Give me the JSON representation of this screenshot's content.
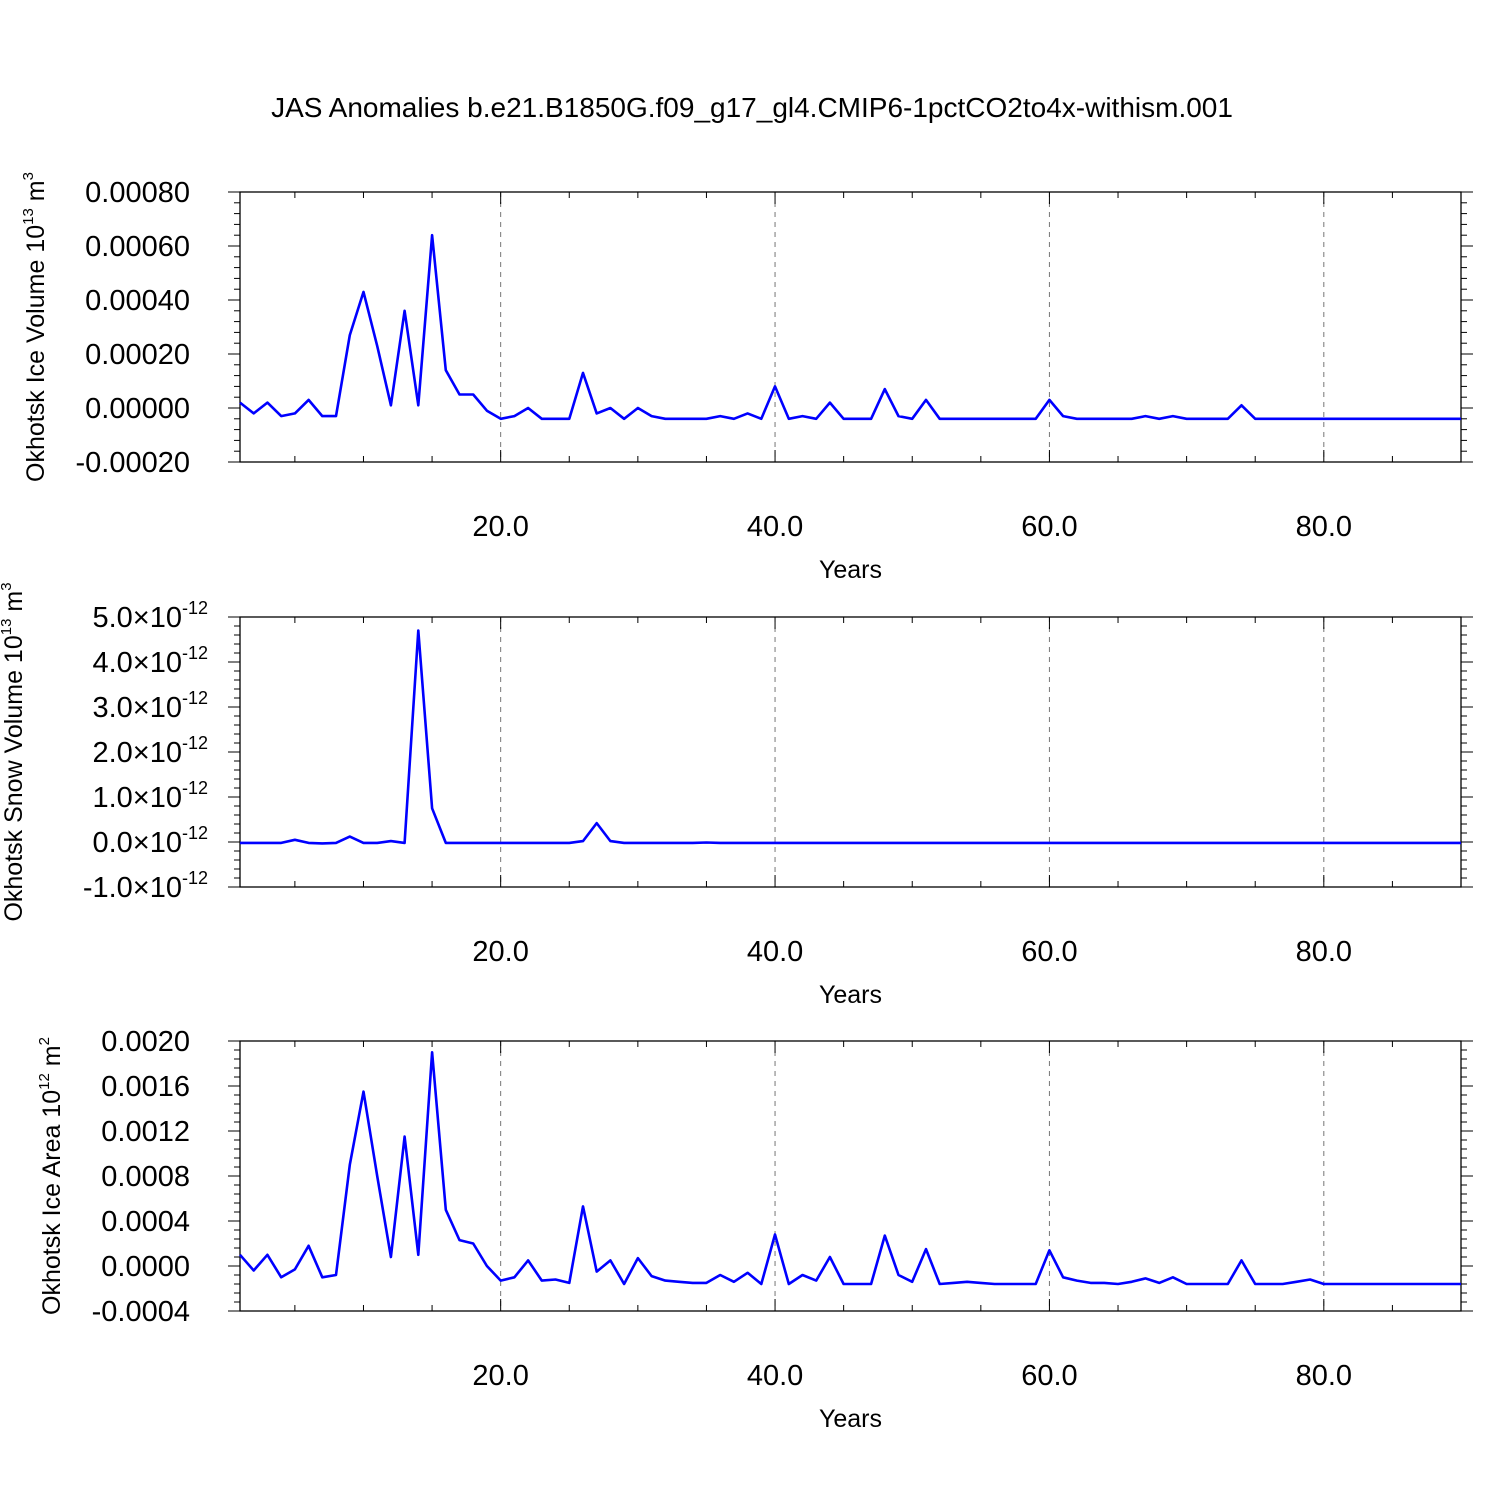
{
  "title": "JAS Anomalies b.e21.B1850G.f09_g17_gl4.CMIP6-1pctCO2to4x-withism.001",
  "line_color": "#0000ff",
  "chart_data": [
    {
      "type": "line",
      "title": "",
      "xlabel": "Years",
      "ylabel": "Okhotsk Ice Volume 10",
      "ylabel_exp": "13",
      "ylabel_unit": " m",
      "ylabel_unit_exp": "3",
      "xlim": [
        1,
        90
      ],
      "ylim": [
        -0.0002,
        0.0008
      ],
      "grid": "vertical dashed at major x ticks",
      "x_ticks": [
        20,
        40,
        60,
        80
      ],
      "x_tick_labels": [
        "20.0",
        "40.0",
        "60.0",
        "80.0"
      ],
      "y_ticks": [
        -0.0002,
        0,
        0.0002,
        0.0004,
        0.0006,
        0.0008
      ],
      "y_tick_labels": [
        "-0.00020",
        "0.00000",
        "0.00020",
        "0.00040",
        "0.00060",
        "0.00080"
      ],
      "x_start": 1,
      "values": [
        2e-05,
        -2e-05,
        2e-05,
        -3e-05,
        -2e-05,
        3e-05,
        -3e-05,
        -3e-05,
        0.00027,
        0.00043,
        0.00023,
        1e-05,
        0.00036,
        1e-05,
        0.00064,
        0.00014,
        5e-05,
        5e-05,
        -1e-05,
        -4e-05,
        -3e-05,
        0.0,
        -4e-05,
        -4e-05,
        -4e-05,
        0.00013,
        -2e-05,
        0.0,
        -4e-05,
        0.0,
        -3e-05,
        -4e-05,
        -4e-05,
        -4e-05,
        -4e-05,
        -3e-05,
        -4e-05,
        -2e-05,
        -4e-05,
        8e-05,
        -4e-05,
        -3e-05,
        -4e-05,
        2e-05,
        -4e-05,
        -4e-05,
        -4e-05,
        7e-05,
        -3e-05,
        -4e-05,
        3e-05,
        -4e-05,
        -4e-05,
        -4e-05,
        -4e-05,
        -4e-05,
        -4e-05,
        -4e-05,
        -4e-05,
        3e-05,
        -3e-05,
        -4e-05,
        -4e-05,
        -4e-05,
        -4e-05,
        -4e-05,
        -3e-05,
        -4e-05,
        -3e-05,
        -4e-05,
        -4e-05,
        -4e-05,
        -4e-05,
        1e-05,
        -4e-05,
        -4e-05,
        -4e-05,
        -4e-05,
        -4e-05,
        -4e-05,
        -4e-05,
        -4e-05,
        -4e-05,
        -4e-05,
        -4e-05,
        -4e-05,
        -4e-05,
        -4e-05,
        -4e-05,
        -4e-05
      ]
    },
    {
      "type": "line",
      "title": "",
      "xlabel": "Years",
      "ylabel": "Okhotsk Snow Volume 10",
      "ylabel_exp": "13",
      "ylabel_unit": " m",
      "ylabel_unit_exp": "3",
      "xlim": [
        1,
        90
      ],
      "ylim": [
        -1.0,
        5.0
      ],
      "y_scale_note": "×10^-12",
      "grid": "vertical dashed at major x ticks",
      "x_ticks": [
        20,
        40,
        60,
        80
      ],
      "x_tick_labels": [
        "20.0",
        "40.0",
        "60.0",
        "80.0"
      ],
      "y_ticks": [
        -1,
        0,
        1,
        2,
        3,
        4,
        5
      ],
      "y_tick_mantissas": [
        "-1.0",
        "0.0",
        "1.0",
        "2.0",
        "3.0",
        "4.0",
        "5.0"
      ],
      "y_tick_times": "×10",
      "y_tick_exp": "-12",
      "x_start": 1,
      "values": [
        -0.02,
        -0.02,
        -0.02,
        -0.02,
        0.05,
        -0.02,
        -0.03,
        -0.02,
        0.12,
        -0.02,
        -0.02,
        0.02,
        -0.02,
        4.7,
        0.75,
        -0.02,
        -0.02,
        -0.02,
        -0.02,
        -0.02,
        -0.02,
        -0.02,
        -0.02,
        -0.02,
        -0.02,
        0.02,
        0.42,
        0.02,
        -0.02,
        -0.02,
        -0.02,
        -0.02,
        -0.02,
        -0.02,
        -0.01,
        -0.02,
        -0.02,
        -0.02,
        -0.02,
        -0.02,
        -0.02,
        -0.02,
        -0.02,
        -0.02,
        -0.02,
        -0.02,
        -0.02,
        -0.02,
        -0.02,
        -0.02,
        -0.02,
        -0.02,
        -0.02,
        -0.02,
        -0.02,
        -0.02,
        -0.02,
        -0.02,
        -0.02,
        -0.02,
        -0.02,
        -0.02,
        -0.02,
        -0.02,
        -0.02,
        -0.02,
        -0.02,
        -0.02,
        -0.02,
        -0.02,
        -0.02,
        -0.02,
        -0.02,
        -0.02,
        -0.02,
        -0.02,
        -0.02,
        -0.02,
        -0.02,
        -0.02,
        -0.02,
        -0.02,
        -0.02,
        -0.02,
        -0.02,
        -0.02,
        -0.02,
        -0.02,
        -0.02,
        -0.02
      ]
    },
    {
      "type": "line",
      "title": "",
      "xlabel": "Years",
      "ylabel": "Okhotsk Ice Area 10",
      "ylabel_exp": "12",
      "ylabel_unit": " m",
      "ylabel_unit_exp": "2",
      "xlim": [
        1,
        90
      ],
      "ylim": [
        -0.0004,
        0.002
      ],
      "grid": "vertical dashed at major x ticks",
      "x_ticks": [
        20,
        40,
        60,
        80
      ],
      "x_tick_labels": [
        "20.0",
        "40.0",
        "60.0",
        "80.0"
      ],
      "y_ticks": [
        -0.0004,
        0,
        0.0004,
        0.0008,
        0.0012,
        0.0016,
        0.002
      ],
      "y_tick_labels": [
        "-0.0004",
        "0.0000",
        "0.0004",
        "0.0008",
        "0.0012",
        "0.0016",
        "0.0020"
      ],
      "x_start": 1,
      "values": [
        0.0001,
        -4e-05,
        0.0001,
        -0.0001,
        -3e-05,
        0.00018,
        -0.0001,
        -8e-05,
        0.0009,
        0.00155,
        0.0008,
        8e-05,
        0.00115,
        0.0001,
        0.0019,
        0.0005,
        0.00023,
        0.0002,
        0.0,
        -0.00013,
        -0.0001,
        5e-05,
        -0.00013,
        -0.00012,
        -0.00015,
        0.00053,
        -5e-05,
        5e-05,
        -0.00016,
        7e-05,
        -9e-05,
        -0.00013,
        -0.00014,
        -0.00015,
        -0.00015,
        -8e-05,
        -0.00014,
        -6e-05,
        -0.00016,
        0.00028,
        -0.00016,
        -8e-05,
        -0.00013,
        8e-05,
        -0.00016,
        -0.00016,
        -0.00016,
        0.00027,
        -8e-05,
        -0.00014,
        0.00015,
        -0.00016,
        -0.00015,
        -0.00014,
        -0.00015,
        -0.00016,
        -0.00016,
        -0.00016,
        -0.00016,
        0.00014,
        -0.0001,
        -0.00013,
        -0.00015,
        -0.00015,
        -0.00016,
        -0.00014,
        -0.00011,
        -0.00015,
        -0.0001,
        -0.00016,
        -0.00016,
        -0.00016,
        -0.00016,
        5e-05,
        -0.00016,
        -0.00016,
        -0.00016,
        -0.00014,
        -0.00012,
        -0.00016,
        -0.00016,
        -0.00016,
        -0.00016,
        -0.00016,
        -0.00016,
        -0.00016,
        -0.00016,
        -0.00016,
        -0.00016,
        -0.00016
      ]
    }
  ]
}
